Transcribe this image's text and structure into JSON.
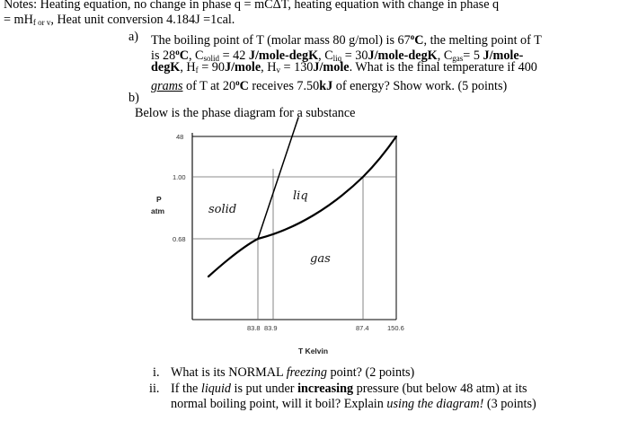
{
  "notes": {
    "line1_a": "Notes: Heating equation, no change in phase q = mC",
    "line1_delta": "Δ",
    "line1_b": "T, heating equation with change in phase q",
    "line2_a": "= mH",
    "line2_sub": "f or v",
    "line2_b": ", Heat unit conversion 4.184J =1cal."
  },
  "part_a": {
    "marker": "a)",
    "l1_a": "The boiling point of T (molar mass 80 g/mol) is 67",
    "l1_deg": "o",
    "l1_b": "C",
    "l1_c": ", the melting point of T",
    "l2_a": "is 28",
    "l2_deg": "o",
    "l2_b": "C",
    "l2_c": ", C",
    "l2_sub1": "solid",
    "l2_d": " = 42 ",
    "l2_e": "J/mole-degK",
    "l2_f": ", C",
    "l2_sub2": "liq",
    "l2_g": " = 30",
    "l2_h": "J/mole-degK",
    "l2_i": ", C",
    "l2_sub3": "gas",
    "l2_j": "= 5 ",
    "l2_k": "J/mole-",
    "l3_a": "degK",
    "l3_b": ", H",
    "l3_sub1": "f",
    "l3_c": " = 90",
    "l3_d": "J/mole",
    "l3_e": ", H",
    "l3_sub2": "v",
    "l3_f": " = 130",
    "l3_g": "J/mole",
    "l3_h": ". What is the final temperature if 400",
    "l4_a": "grams",
    "l4_b": " of T at 20",
    "l4_deg": "o",
    "l4_c": "C",
    "l4_d": " receives 7.50",
    "l4_e": "kJ",
    "l4_f": " of energy? Show work. (5 points)"
  },
  "part_b": {
    "marker": "b)",
    "intro": "Below is the phase diagram for a substance"
  },
  "diagram": {
    "y_ticks": [
      "48",
      "1.00",
      "0.68"
    ],
    "x_ticks": [
      "83.8",
      "83.9",
      "87.4",
      "150.6"
    ],
    "y_label_1": "P",
    "y_label_2": "atm",
    "x_label": "T Kelvin",
    "region_solid": "solid",
    "region_liquid": "liq",
    "region_gas": "gas"
  },
  "questions": {
    "i_marker": "i.",
    "i_a": "What is its NORMAL ",
    "i_b": "freezing",
    "i_c": " point? (2 points)",
    "ii_marker": "ii.",
    "ii_a": "If the ",
    "ii_b": "liquid",
    "ii_c": " is put under ",
    "ii_d": "increasing",
    "ii_e": " pressure (but below 48 atm) at its",
    "ii_f": "normal boiling point, will it boil? Explain ",
    "ii_g": "using the diagram!",
    "ii_h": " (3 points)"
  }
}
